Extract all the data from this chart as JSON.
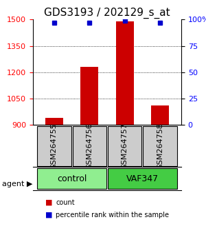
{
  "title": "GDS3193 / 202129_s_at",
  "samples": [
    "GSM264755",
    "GSM264756",
    "GSM264757",
    "GSM264758"
  ],
  "groups": [
    "control",
    "control",
    "VAF347",
    "VAF347"
  ],
  "counts": [
    940,
    1230,
    1490,
    1010
  ],
  "percentiles": [
    97,
    97,
    99,
    97
  ],
  "ylim_left": [
    900,
    1500
  ],
  "yticks_left": [
    900,
    1050,
    1200,
    1350,
    1500
  ],
  "ylim_right": [
    0,
    100
  ],
  "yticks_right": [
    0,
    25,
    50,
    75,
    100
  ],
  "bar_color": "#cc0000",
  "dot_color": "#0000cc",
  "control_color": "#90ee90",
  "vaf_color": "#44cc44",
  "sample_box_color": "#cccccc",
  "title_fontsize": 11,
  "tick_fontsize": 8,
  "label_fontsize": 8,
  "group_label_fontsize": 9,
  "bar_width": 0.5,
  "legend_count_color": "#cc0000",
  "legend_pct_color": "#0000cc"
}
